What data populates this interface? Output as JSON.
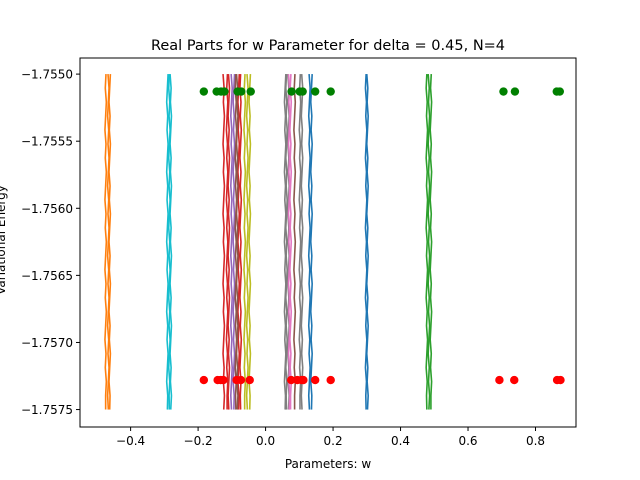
{
  "chart_data": {
    "type": "line",
    "title": "Real Parts for w Parameter for delta = 0.45, N=4",
    "xlabel": "Parameters: w",
    "ylabel": "Variational Energy",
    "xlim": [
      -0.55,
      0.92
    ],
    "ylim": [
      -1.75763,
      -1.75488
    ],
    "x_ticks": [
      -0.4,
      -0.2,
      0.0,
      0.2,
      0.4,
      0.6,
      0.8
    ],
    "x_tick_labels": [
      "−0.4",
      "−0.2",
      "0.0",
      "0.2",
      "0.4",
      "0.6",
      "0.8"
    ],
    "y_ticks": [
      -1.7575,
      -1.757,
      -1.7565,
      -1.756,
      -1.7555,
      -1.755
    ],
    "y_tick_labels": [
      "−1.7575",
      "−1.7570",
      "−1.7565",
      "−1.7560",
      "−1.7555",
      "−1.7550"
    ],
    "grid": false,
    "line_y_range": [
      -1.7575,
      -1.755
    ],
    "series": [
      {
        "color": "#ff7f0e",
        "x": [
          -0.474,
          -0.466,
          -0.462
        ]
      },
      {
        "color": "#17becf",
        "x": [
          -0.291,
          -0.285,
          -0.281
        ]
      },
      {
        "color": "#d62728",
        "x": [
          -0.124,
          -0.114,
          -0.109,
          -0.08,
          -0.074
        ]
      },
      {
        "color": "#9467bd",
        "x": [
          -0.101,
          -0.094
        ]
      },
      {
        "color": "#8c564b",
        "x": [
          -0.088,
          -0.084,
          0.086
        ]
      },
      {
        "color": "#bcbd22",
        "x": [
          -0.062,
          -0.054,
          -0.047
        ]
      },
      {
        "color": "#7f7f7f",
        "x": [
          0.058,
          0.062,
          0.068,
          0.102,
          0.108
        ]
      },
      {
        "color": "#e377c2",
        "x": [
          0.07,
          0.074
        ]
      },
      {
        "color": "#1f77b4",
        "x": [
          0.13,
          0.136,
          0.298,
          0.302
        ]
      },
      {
        "color": "#2ca02c",
        "x": [
          0.478,
          0.484,
          0.49
        ]
      }
    ],
    "points_top": {
      "color": "#008000",
      "y": -1.75513,
      "x": [
        -0.183,
        -0.145,
        -0.132,
        -0.122,
        -0.083,
        -0.072,
        -0.044,
        0.077,
        0.101,
        0.11,
        0.147,
        0.193,
        0.705,
        0.739,
        0.863,
        0.872
      ]
    },
    "points_bottom": {
      "color": "#ff0000",
      "y": -1.75728,
      "x": [
        -0.183,
        -0.142,
        -0.133,
        -0.125,
        -0.086,
        -0.073,
        -0.047,
        0.076,
        0.094,
        0.106,
        0.112,
        0.147,
        0.193,
        0.693,
        0.737,
        0.864,
        0.874
      ]
    }
  }
}
